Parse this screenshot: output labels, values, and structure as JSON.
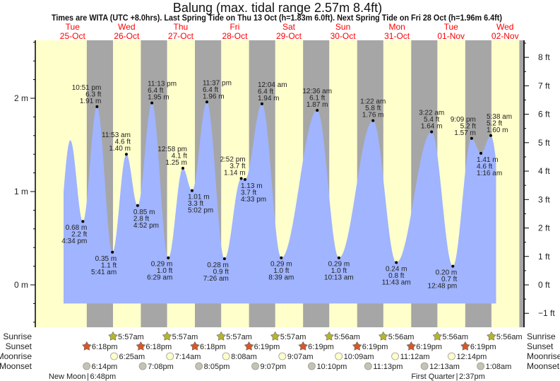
{
  "chart_data": {
    "type": "area",
    "title": "Balung (max. tidal range 2.57m 8.4ft)",
    "subtitle": "Times are WITA (UTC +8.0hrs). Last Spring Tide on Thu 13 Oct (h=1.83m 6.0ft). Next Spring Tide on Fri 28 Oct (h=1.96m 6.4ft)",
    "days": [
      {
        "dow": "Tue",
        "date": "25-Oct"
      },
      {
        "dow": "Wed",
        "date": "26-Oct"
      },
      {
        "dow": "Thu",
        "date": "27-Oct"
      },
      {
        "dow": "Fri",
        "date": "28-Oct"
      },
      {
        "dow": "Sat",
        "date": "29-Oct"
      },
      {
        "dow": "Sun",
        "date": "30-Oct"
      },
      {
        "dow": "Mon",
        "date": "31-Oct"
      },
      {
        "dow": "Tue",
        "date": "01-Nov"
      },
      {
        "dow": "Wed",
        "date": "02-Nov"
      }
    ],
    "y_axis_m": {
      "range": [
        -0.45,
        2.62
      ],
      "ticks": [
        {
          "v": 0,
          "label": "0 m"
        },
        {
          "v": 1,
          "label": "1 m"
        },
        {
          "v": 2,
          "label": "2 m"
        }
      ]
    },
    "y_axis_ft": {
      "ticks": [
        {
          "v": -1,
          "label": "−1 ft"
        },
        {
          "v": 0,
          "label": "0 ft"
        },
        {
          "v": 1,
          "label": "1 ft"
        },
        {
          "v": 2,
          "label": "2 ft"
        },
        {
          "v": 3,
          "label": "3 ft"
        },
        {
          "v": 4,
          "label": "4 ft"
        },
        {
          "v": 5,
          "label": "5 ft"
        },
        {
          "v": 6,
          "label": "6 ft"
        },
        {
          "v": 7,
          "label": "7 ft"
        },
        {
          "v": 8,
          "label": "8 ft"
        }
      ]
    },
    "tides": [
      {
        "day": 0,
        "time": "4:34 pm",
        "m": "0.68 m",
        "ft": "2.2 ft",
        "h": 0.68,
        "type": "L"
      },
      {
        "day": 0,
        "time": "10:51 pm",
        "m": "1.91 m",
        "ft": "6.3 ft",
        "h": 1.91,
        "type": "H"
      },
      {
        "day": 1,
        "time": "5:41 am",
        "m": "0.35 m",
        "ft": "1.1 ft",
        "h": 0.35,
        "type": "L"
      },
      {
        "day": 1,
        "time": "11:53 am",
        "m": "1.40 m",
        "ft": "4.6 ft",
        "h": 1.4,
        "type": "H"
      },
      {
        "day": 1,
        "time": "4:52 pm",
        "m": "0.85 m",
        "ft": "2.8 ft",
        "h": 0.85,
        "type": "L"
      },
      {
        "day": 1,
        "time": "11:13 pm",
        "m": "1.95 m",
        "ft": "6.4 ft",
        "h": 1.95,
        "type": "H"
      },
      {
        "day": 2,
        "time": "6:29 am",
        "m": "0.29 m",
        "ft": "1.0 ft",
        "h": 0.29,
        "type": "L"
      },
      {
        "day": 2,
        "time": "12:58 pm",
        "m": "1.25 m",
        "ft": "4.1 ft",
        "h": 1.25,
        "type": "H"
      },
      {
        "day": 2,
        "time": "5:02 pm",
        "m": "1.01 m",
        "ft": "3.3 ft",
        "h": 1.01,
        "type": "L"
      },
      {
        "day": 2,
        "time": "11:37 pm",
        "m": "1.96 m",
        "ft": "6.4 ft",
        "h": 1.96,
        "type": "H"
      },
      {
        "day": 3,
        "time": "7:26 am",
        "m": "0.28 m",
        "ft": "0.9 ft",
        "h": 0.28,
        "type": "L"
      },
      {
        "day": 3,
        "time": "2:52 pm",
        "m": "1.14 m",
        "ft": "3.7 ft",
        "h": 1.14,
        "type": "H"
      },
      {
        "day": 3,
        "time": "4:33 pm",
        "m": "1.13 m",
        "ft": "3.7 ft",
        "h": 1.13,
        "type": "L"
      },
      {
        "day": 4,
        "time": "12:04 am",
        "m": "1.94 m",
        "ft": "6.4 ft",
        "h": 1.94,
        "type": "H"
      },
      {
        "day": 4,
        "time": "8:39 am",
        "m": "0.29 m",
        "ft": "1.0 ft",
        "h": 0.29,
        "type": "L"
      },
      {
        "day": 5,
        "time": "12:36 am",
        "m": "1.87 m",
        "ft": "6.1 ft",
        "h": 1.87,
        "type": "H"
      },
      {
        "day": 5,
        "time": "10:13 am",
        "m": "0.29 m",
        "ft": "1.0 ft",
        "h": 0.29,
        "type": "L"
      },
      {
        "day": 6,
        "time": "1:22 am",
        "m": "1.76 m",
        "ft": "5.8 ft",
        "h": 1.76,
        "type": "H"
      },
      {
        "day": 6,
        "time": "11:43 am",
        "m": "0.24 m",
        "ft": "0.8 ft",
        "h": 0.24,
        "type": "L"
      },
      {
        "day": 7,
        "time": "3:22 am",
        "m": "1.64 m",
        "ft": "5.4 ft",
        "h": 1.64,
        "type": "H"
      },
      {
        "day": 7,
        "time": "12:48 pm",
        "m": "0.20 m",
        "ft": "0.7 ft",
        "h": 0.2,
        "type": "L"
      },
      {
        "day": 7,
        "time": "9:09 pm",
        "m": "1.57 m",
        "ft": "5.2 ft",
        "h": 1.57,
        "type": "H"
      },
      {
        "day": 8,
        "time": "1:16 am",
        "m": "1.41 m",
        "ft": "4.6 ft",
        "h": 1.41,
        "type": "L"
      },
      {
        "day": 8,
        "time": "5:38 am",
        "m": "1.60 m",
        "ft": "5.2 ft",
        "h": 1.6,
        "type": "H"
      }
    ],
    "estimated_extremes": [
      {
        "day": 0,
        "hour": 5.0,
        "h": 0.45
      },
      {
        "day": 0,
        "hour": 11.0,
        "h": 1.55
      },
      {
        "day": 8,
        "hour": 13.0,
        "h": 0.4
      }
    ],
    "curve_window_hours": [
      8,
      200
    ],
    "fill_floor_m": -0.2
  },
  "rows": {
    "labels": {
      "sunrise": "Sunrise",
      "sunset": "Sunset",
      "moonrise": "Moonrise",
      "moonset": "Moonset"
    },
    "sunrise": [
      {
        "day": 1,
        "time": "5:57am"
      },
      {
        "day": 2,
        "time": "5:57am"
      },
      {
        "day": 3,
        "time": "5:57am"
      },
      {
        "day": 4,
        "time": "5:57am"
      },
      {
        "day": 5,
        "time": "5:56am"
      },
      {
        "day": 6,
        "time": "5:56am"
      },
      {
        "day": 7,
        "time": "5:56am"
      },
      {
        "day": 8,
        "time": "5:56am"
      }
    ],
    "sunset": [
      {
        "day": 0,
        "time": "6:18pm"
      },
      {
        "day": 1,
        "time": "6:18pm"
      },
      {
        "day": 2,
        "time": "6:18pm"
      },
      {
        "day": 3,
        "time": "6:19pm"
      },
      {
        "day": 4,
        "time": "6:19pm"
      },
      {
        "day": 5,
        "time": "6:19pm"
      },
      {
        "day": 6,
        "time": "6:19pm"
      },
      {
        "day": 7,
        "time": "6:19pm"
      }
    ],
    "moonrise": [
      {
        "day": 1,
        "time": "6:25am"
      },
      {
        "day": 2,
        "time": "7:14am"
      },
      {
        "day": 3,
        "time": "8:08am"
      },
      {
        "day": 4,
        "time": "9:07am"
      },
      {
        "day": 5,
        "time": "10:09am"
      },
      {
        "day": 6,
        "time": "11:12am"
      },
      {
        "day": 7,
        "time": "12:14pm"
      }
    ],
    "moonset": [
      {
        "day": 0,
        "time": "6:14pm"
      },
      {
        "day": 1,
        "time": "7:08pm"
      },
      {
        "day": 2,
        "time": "8:05pm"
      },
      {
        "day": 3,
        "time": "9:07pm"
      },
      {
        "day": 4,
        "time": "10:10pm"
      },
      {
        "day": 5,
        "time": "11:13pm"
      },
      {
        "day": 7,
        "time": "12:13am"
      },
      {
        "day": 8,
        "time": "1:08am"
      }
    ]
  },
  "moon_phases": [
    {
      "day": 0,
      "name": "New Moon",
      "separator": "|",
      "time": "6:48pm"
    },
    {
      "day": 7,
      "name": "First Quarter",
      "separator": "|",
      "time": "2:37pm"
    }
  ],
  "colors": {
    "day": "#ffffcc",
    "night": "#a6a6a6",
    "water": "#a0b4ff",
    "day_label": "#ff0000",
    "sunrise_icon": "#b5b52e",
    "sunset_icon": "#d4582a",
    "moonrise_icon": "#ffffc8",
    "moonset_icon": "#c6c3b3"
  }
}
